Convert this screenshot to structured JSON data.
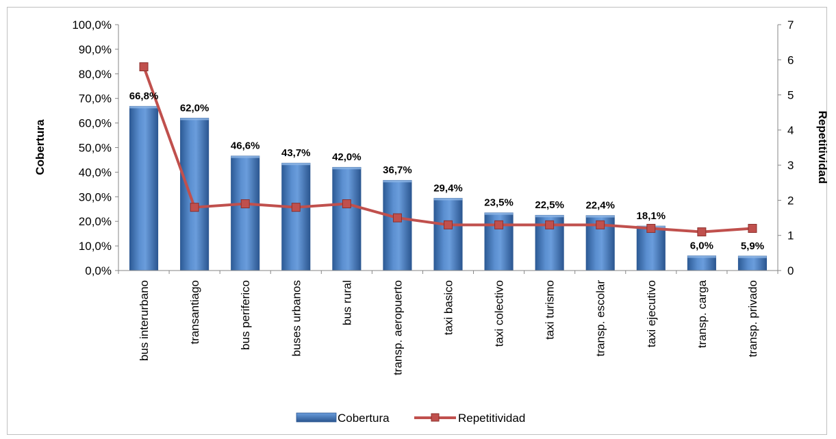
{
  "chart_data": {
    "type": "bar",
    "categories": [
      "bus interurbano",
      "transantiago",
      "bus periferico",
      "buses urbanos",
      "bus rural",
      "transp. aeropuerto",
      "taxi basico",
      "taxi colectivo",
      "taxi turismo",
      "transp. escolar",
      "taxi ejecutivo",
      "transp. carga",
      "transp. privado"
    ],
    "series": [
      {
        "name": "Cobertura",
        "type": "bar",
        "axis": "left",
        "color": "#4f81bd",
        "values": [
          66.8,
          62.0,
          46.6,
          43.7,
          42.0,
          36.7,
          29.4,
          23.5,
          22.5,
          22.4,
          18.1,
          6.0,
          5.9
        ],
        "labels": [
          "66,8%",
          "62,0%",
          "46,6%",
          "43,7%",
          "42,0%",
          "36,7%",
          "29,4%",
          "23,5%",
          "22,5%",
          "22,4%",
          "18,1%",
          "6,0%",
          "5,9%"
        ]
      },
      {
        "name": "Repetitividad",
        "type": "line",
        "axis": "right",
        "color": "#c0504d",
        "marker": "square",
        "values": [
          5.8,
          1.8,
          1.9,
          1.8,
          1.9,
          1.5,
          1.3,
          1.3,
          1.3,
          1.3,
          1.2,
          1.1,
          1.2
        ]
      }
    ],
    "ylabel": "Cobertura",
    "ylabel_right": "Repetitividad",
    "ylim": [
      0,
      100
    ],
    "ylim_right": [
      0,
      7
    ],
    "yticks": [
      "0,0%",
      "10,0%",
      "20,0%",
      "30,0%",
      "40,0%",
      "50,0%",
      "60,0%",
      "70,0%",
      "80,0%",
      "90,0%",
      "100,0%"
    ],
    "yticks_right": [
      "0",
      "1",
      "2",
      "3",
      "4",
      "5",
      "6",
      "7"
    ],
    "grid": false,
    "legend": "bottom"
  }
}
